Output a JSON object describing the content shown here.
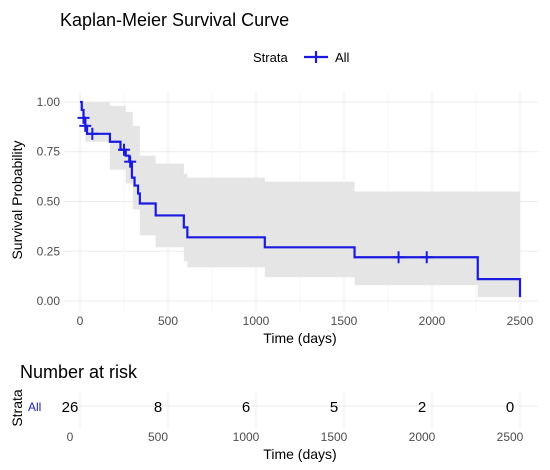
{
  "chart_data": {
    "type": "line",
    "title": "Kaplan-Meier Survival Curve",
    "xlabel": "Time (days)",
    "ylabel": "Survival Probability",
    "xlim": [
      0,
      2500
    ],
    "ylim": [
      0,
      1
    ],
    "x_ticks": [
      0,
      500,
      1000,
      1500,
      2000,
      2500
    ],
    "y_ticks": [
      0.0,
      0.25,
      0.5,
      0.75,
      1.0
    ],
    "x_tick_labels": [
      "0",
      "500",
      "1000",
      "1500",
      "2000",
      "2500"
    ],
    "y_tick_labels": [
      "0.00",
      "0.25",
      "0.50",
      "0.75",
      "1.00"
    ],
    "grid": true,
    "legend": {
      "title": "Strata",
      "placement": "top",
      "entries": [
        "All"
      ]
    },
    "series": [
      {
        "name": "All",
        "color": "#1a1ae0",
        "steps": [
          {
            "t": 0,
            "s": 1.0
          },
          {
            "t": 10,
            "s": 0.96
          },
          {
            "t": 20,
            "s": 0.92
          },
          {
            "t": 30,
            "s": 0.88
          },
          {
            "t": 40,
            "s": 0.84
          },
          {
            "t": 170,
            "s": 0.8
          },
          {
            "t": 230,
            "s": 0.76
          },
          {
            "t": 260,
            "s": 0.73
          },
          {
            "t": 280,
            "s": 0.7
          },
          {
            "t": 295,
            "s": 0.62
          },
          {
            "t": 310,
            "s": 0.58
          },
          {
            "t": 330,
            "s": 0.54
          },
          {
            "t": 340,
            "s": 0.49
          },
          {
            "t": 430,
            "s": 0.43
          },
          {
            "t": 590,
            "s": 0.37
          },
          {
            "t": 610,
            "s": 0.32
          },
          {
            "t": 1050,
            "s": 0.27
          },
          {
            "t": 1560,
            "s": 0.22
          },
          {
            "t": 2260,
            "s": 0.11
          },
          {
            "t": 2500,
            "s": 0.02
          }
        ],
        "censor_times": [
          20,
          30,
          70,
          250,
          285,
          1810,
          1970
        ],
        "ci_steps": [
          {
            "t": 0,
            "lo": 1.0,
            "hi": 1.0
          },
          {
            "t": 10,
            "lo": 0.89,
            "hi": 1.0
          },
          {
            "t": 30,
            "lo": 0.8,
            "hi": 1.0
          },
          {
            "t": 170,
            "lo": 0.66,
            "hi": 0.98
          },
          {
            "t": 260,
            "lo": 0.59,
            "hi": 0.95
          },
          {
            "t": 300,
            "lo": 0.46,
            "hi": 0.88
          },
          {
            "t": 340,
            "lo": 0.33,
            "hi": 0.73
          },
          {
            "t": 430,
            "lo": 0.27,
            "hi": 0.69
          },
          {
            "t": 590,
            "lo": 0.2,
            "hi": 0.64
          },
          {
            "t": 610,
            "lo": 0.17,
            "hi": 0.62
          },
          {
            "t": 1050,
            "lo": 0.12,
            "hi": 0.6
          },
          {
            "t": 1560,
            "lo": 0.08,
            "hi": 0.55
          },
          {
            "t": 2260,
            "lo": 0.02,
            "hi": 0.55
          },
          {
            "t": 2500,
            "lo": 0.0,
            "hi": 0.55
          }
        ]
      }
    ]
  },
  "risk_table": {
    "title": "Number at risk",
    "ylabel": "Strata",
    "strata_label": "All",
    "xlabel": "Time (days)",
    "times": [
      0,
      500,
      1000,
      1500,
      2000,
      2500
    ],
    "time_labels": [
      "0",
      "500",
      "1000",
      "1500",
      "2000",
      "2500"
    ],
    "counts": [
      "26",
      "8",
      "6",
      "5",
      "2",
      "0"
    ]
  },
  "colors": {
    "curve": "#1a1ae0",
    "ci_band": "#e5e5e5",
    "grid": "#ebebeb",
    "risk_strata_label": "#1a1ae0"
  }
}
